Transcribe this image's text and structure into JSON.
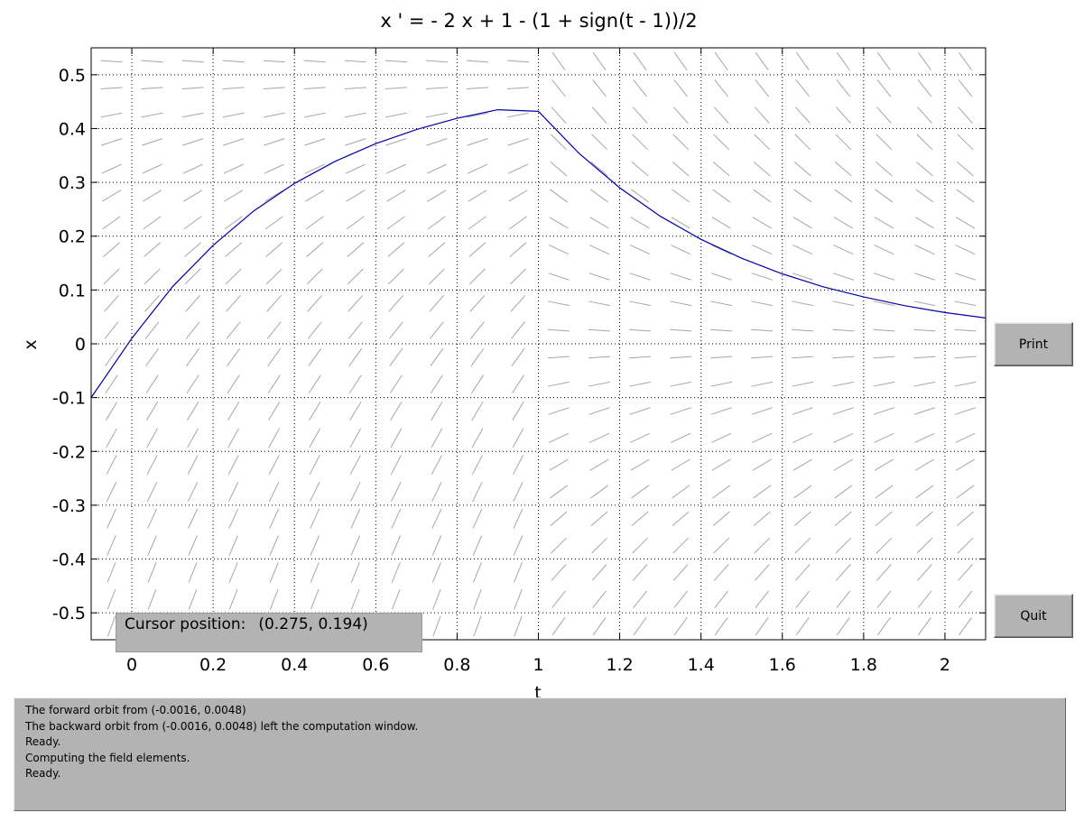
{
  "chart_data": {
    "type": "line",
    "title": "x ' = - 2 x + 1 - (1 + sign(t - 1))/2",
    "xlabel": "t",
    "ylabel": "x",
    "xlim": [
      -0.1,
      2.1
    ],
    "ylim": [
      -0.55,
      0.55
    ],
    "xticks": [
      0,
      0.2,
      0.4,
      0.6,
      0.8,
      1,
      1.2,
      1.4,
      1.6,
      1.8,
      2
    ],
    "xtick_labels": [
      "0",
      "0.2",
      "0.4",
      "0.6",
      "0.8",
      "1",
      "1.2",
      "1.4",
      "1.6",
      "1.8",
      "2"
    ],
    "yticks": [
      0.5,
      0.4,
      0.3,
      0.2,
      0.1,
      0,
      -0.1,
      -0.2,
      -0.3,
      -0.4,
      -0.5
    ],
    "ytick_labels": [
      "0.5",
      "0.4",
      "0.3",
      "0.2",
      "0.1",
      "0",
      "-0.1",
      "-0.2",
      "-0.3",
      "-0.4",
      "-0.5"
    ],
    "grid": true,
    "direction_field": true,
    "series": [
      {
        "color": "#0000aa",
        "t": [
          -0.1,
          0.0,
          0.1,
          0.2,
          0.3,
          0.4,
          0.5,
          0.6,
          0.7,
          0.8,
          0.9,
          1.0,
          1.1,
          1.2,
          1.3,
          1.4,
          1.5,
          1.6,
          1.7,
          1.8,
          1.9,
          2.0,
          2.1
        ],
        "x": [
          -0.1,
          0.01,
          0.106,
          0.183,
          0.247,
          0.298,
          0.339,
          0.372,
          0.398,
          0.419,
          0.435,
          0.432,
          0.354,
          0.29,
          0.237,
          0.194,
          0.159,
          0.13,
          0.106,
          0.087,
          0.071,
          0.058,
          0.048
        ]
      }
    ]
  },
  "buttons": {
    "print": "Print",
    "quit": "Quit"
  },
  "cursor": {
    "label": "Cursor position:",
    "value": "(0.275, 0.194)"
  },
  "messages": [
    "The forward orbit from (-0.0016, 0.0048)",
    "The backward orbit from (-0.0016, 0.0048) left the computation window.",
    "Ready.",
    "Computing the field elements.",
    "Ready."
  ]
}
